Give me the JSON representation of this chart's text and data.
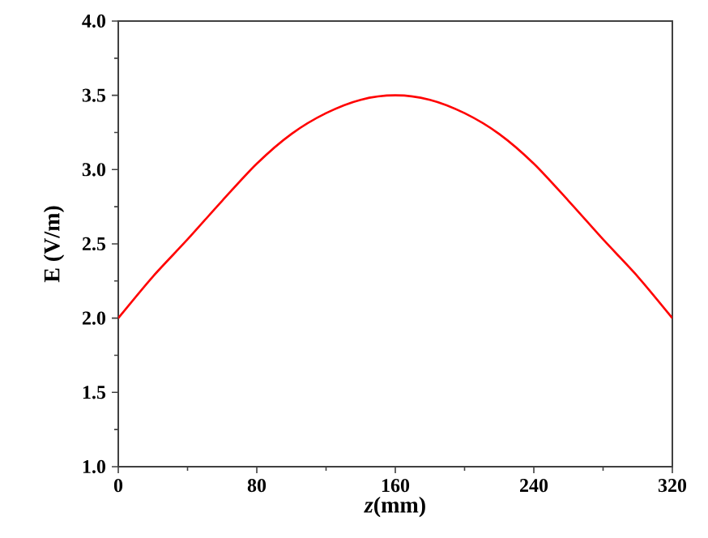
{
  "chart_data": {
    "type": "line",
    "xlabel": "*z*(mm)",
    "ylabel": "E (V/m)",
    "x": [
      0,
      20,
      40,
      60,
      80,
      100,
      120,
      140,
      160,
      180,
      200,
      220,
      240,
      260,
      280,
      300,
      320
    ],
    "series": [
      {
        "color": "#ff0000",
        "values": [
          2.0,
          2.28,
          2.53,
          2.79,
          3.04,
          3.24,
          3.38,
          3.47,
          3.5,
          3.47,
          3.38,
          3.24,
          3.04,
          2.79,
          2.53,
          2.28,
          2.0
        ]
      }
    ],
    "xlim": [
      0,
      320
    ],
    "ylim": [
      1.0,
      4.0
    ],
    "xticks": [
      0,
      80,
      160,
      240,
      320
    ],
    "yticks": [
      {
        "value": 1.0,
        "label": "1.0"
      },
      {
        "value": 1.5,
        "label": "1.5"
      },
      {
        "value": 2.0,
        "label": "2.0"
      },
      {
        "value": 2.5,
        "label": "2.5"
      },
      {
        "value": 3.0,
        "label": "3.0"
      },
      {
        "value": 3.5,
        "label": "3.5"
      },
      {
        "value": 4.0,
        "label": "4.0"
      }
    ],
    "grid": false,
    "marker": "none",
    "line_style": "solid"
  }
}
